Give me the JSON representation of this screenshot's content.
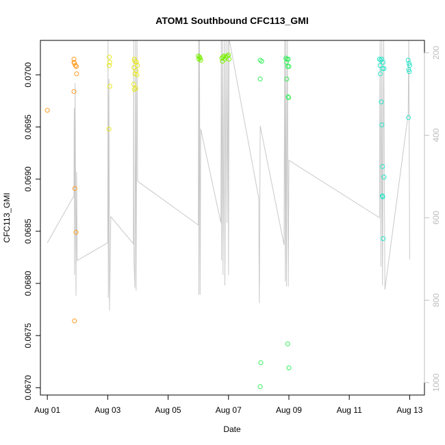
{
  "chart_data": {
    "type": "scatter",
    "title": "ATOM1 Southbound CFC113_GMI",
    "xlabel": "Date",
    "ylabel": "CFC113_GMI",
    "x_ticks": [
      "Aug 01",
      "Aug 03",
      "Aug 05",
      "Aug 07",
      "Aug 09",
      "Aug 11",
      "Aug 13"
    ],
    "x_tick_days": [
      1,
      3,
      5,
      7,
      9,
      11,
      13
    ],
    "xlim": [
      0.77,
      13.49
    ],
    "ylim": [
      0.06693,
      0.07033
    ],
    "y_ticks": [
      0.067,
      0.0675,
      0.068,
      0.0685,
      0.069,
      0.0695,
      0.07
    ],
    "y_tick_labels": [
      "0.0670",
      "0.0675",
      "0.0680",
      "0.0685",
      "0.0690",
      "0.0695",
      "0.0700"
    ],
    "y2_ticks": [
      200,
      400,
      600,
      800,
      1000
    ],
    "y2_tick_labels": [
      "200",
      "400",
      "600",
      "800",
      "1000"
    ],
    "y2_lim_top_to_bottom": [
      170,
      1030
    ],
    "grid": false,
    "secondary_line_color": "#c8c8c8",
    "series": [
      {
        "color": "#ff9a1f",
        "points": [
          [
            1.0,
            0.06966
          ],
          [
            1.88,
            0.07015
          ],
          [
            1.88,
            0.07012
          ],
          [
            1.9,
            0.07011
          ],
          [
            1.93,
            0.07009
          ],
          [
            1.96,
            0.07008
          ],
          [
            1.97,
            0.07001
          ],
          [
            1.88,
            0.06984
          ],
          [
            1.91,
            0.06891
          ],
          [
            1.95,
            0.06849
          ],
          [
            1.9,
            0.06764
          ]
        ]
      },
      {
        "color": "#e8e81a",
        "points": [
          [
            3.05,
            0.07017
          ],
          [
            3.07,
            0.07012
          ],
          [
            3.05,
            0.07009
          ],
          [
            3.07,
            0.06989
          ],
          [
            3.04,
            0.06948
          ],
          [
            3.88,
            0.07015
          ],
          [
            3.9,
            0.07013
          ],
          [
            3.95,
            0.07012
          ],
          [
            3.98,
            0.07009
          ],
          [
            3.87,
            0.07007
          ],
          [
            3.94,
            0.07004
          ],
          [
            3.9,
            0.07001
          ],
          [
            3.97,
            0.07
          ],
          [
            3.86,
            0.06991
          ],
          [
            3.93,
            0.06987
          ],
          [
            3.88,
            0.06986
          ]
        ]
      },
      {
        "color": "#78f000",
        "points": [
          [
            6.0,
            0.07018
          ],
          [
            6.04,
            0.07017
          ],
          [
            6.06,
            0.07016
          ],
          [
            6.02,
            0.07015
          ],
          [
            6.08,
            0.07014
          ],
          [
            6.78,
            0.07016
          ],
          [
            6.82,
            0.07017
          ],
          [
            6.85,
            0.07018
          ],
          [
            6.88,
            0.07015
          ],
          [
            6.92,
            0.07017
          ],
          [
            6.96,
            0.07018
          ],
          [
            7.0,
            0.07019
          ],
          [
            6.8,
            0.07013
          ],
          [
            7.02,
            0.07015
          ]
        ]
      },
      {
        "color": "#33f05a",
        "points": [
          [
            8.05,
            0.07014
          ],
          [
            8.1,
            0.07013
          ],
          [
            8.05,
            0.06996
          ],
          [
            8.07,
            0.06724
          ],
          [
            8.05,
            0.06701
          ],
          [
            8.9,
            0.07016
          ],
          [
            8.94,
            0.07015
          ],
          [
            8.98,
            0.07015
          ],
          [
            8.92,
            0.07012
          ],
          [
            8.96,
            0.07008
          ],
          [
            9.0,
            0.07008
          ],
          [
            8.93,
            0.06996
          ],
          [
            8.97,
            0.06979
          ],
          [
            8.99,
            0.06978
          ],
          [
            8.96,
            0.06742
          ],
          [
            9.0,
            0.06719
          ]
        ]
      },
      {
        "color": "#22e6c8",
        "points": [
          [
            12.0,
            0.07015
          ],
          [
            12.04,
            0.07014
          ],
          [
            12.08,
            0.07015
          ],
          [
            12.12,
            0.07012
          ],
          [
            12.02,
            0.07009
          ],
          [
            12.1,
            0.07006
          ],
          [
            12.03,
            0.07001
          ],
          [
            12.15,
            0.07006
          ],
          [
            12.06,
            0.06974
          ],
          [
            12.08,
            0.06952
          ],
          [
            12.1,
            0.06912
          ],
          [
            12.15,
            0.06902
          ],
          [
            12.09,
            0.06884
          ],
          [
            12.11,
            0.06883
          ],
          [
            12.12,
            0.06843
          ],
          [
            12.95,
            0.07014
          ],
          [
            12.98,
            0.07011
          ],
          [
            13.0,
            0.07009
          ],
          [
            12.97,
            0.07005
          ],
          [
            12.99,
            0.07003
          ],
          [
            12.96,
            0.06959
          ]
        ]
      }
    ],
    "secondary_line": [
      [
        1.0,
        0.06839
      ],
      [
        1.88,
        0.06884
      ],
      [
        1.89,
        0.06968
      ],
      [
        1.9,
        0.06808
      ],
      [
        1.92,
        0.06992
      ],
      [
        1.95,
        0.06788
      ],
      [
        1.97,
        0.06907
      ],
      [
        1.99,
        0.06822
      ],
      [
        3.0,
        0.06839
      ],
      [
        3.01,
        0.07035
      ],
      [
        3.02,
        0.06786
      ],
      [
        3.04,
        0.06996
      ],
      [
        3.06,
        0.06774
      ],
      [
        3.1,
        0.06864
      ],
      [
        3.85,
        0.06838
      ],
      [
        3.86,
        0.07035
      ],
      [
        3.87,
        0.06822
      ],
      [
        3.9,
        0.06796
      ],
      [
        3.92,
        0.07035
      ],
      [
        3.94,
        0.06793
      ],
      [
        3.97,
        0.07035
      ],
      [
        3.99,
        0.06898
      ],
      [
        6.0,
        0.06856
      ],
      [
        6.01,
        0.07035
      ],
      [
        6.02,
        0.06789
      ],
      [
        6.04,
        0.07035
      ],
      [
        6.06,
        0.06789
      ],
      [
        6.08,
        0.06948
      ],
      [
        6.75,
        0.06858
      ],
      [
        6.76,
        0.07035
      ],
      [
        6.77,
        0.06822
      ],
      [
        6.8,
        0.07035
      ],
      [
        6.82,
        0.06808
      ],
      [
        6.86,
        0.07035
      ],
      [
        6.88,
        0.06798
      ],
      [
        6.92,
        0.07035
      ],
      [
        6.95,
        0.06858
      ],
      [
        6.98,
        0.07035
      ],
      [
        7.0,
        0.06808
      ],
      [
        7.02,
        0.07035
      ],
      [
        8.0,
        0.06882
      ],
      [
        8.02,
        0.06781
      ],
      [
        8.05,
        0.06951
      ],
      [
        8.84,
        0.06837
      ],
      [
        8.86,
        0.07035
      ],
      [
        8.88,
        0.06802
      ],
      [
        8.9,
        0.07035
      ],
      [
        8.92,
        0.06797
      ],
      [
        8.95,
        0.07035
      ],
      [
        8.98,
        0.06797
      ],
      [
        9.0,
        0.06918
      ],
      [
        12.0,
        0.06863
      ],
      [
        12.02,
        0.07035
      ],
      [
        12.05,
        0.06816
      ],
      [
        12.08,
        0.07035
      ],
      [
        12.1,
        0.06798
      ],
      [
        12.14,
        0.07035
      ],
      [
        12.18,
        0.06794
      ],
      [
        12.95,
        0.06962
      ],
      [
        12.97,
        0.07035
      ],
      [
        13.0,
        0.06823
      ]
    ]
  }
}
